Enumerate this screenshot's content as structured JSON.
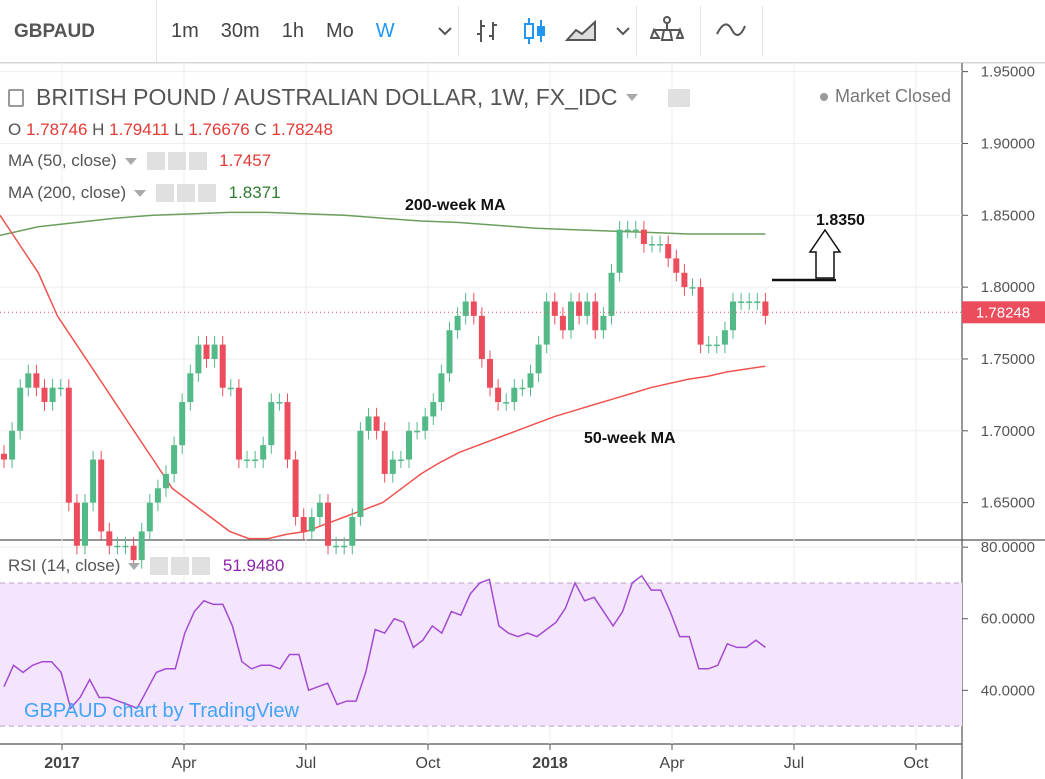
{
  "toolbar": {
    "symbol": "GBPAUD",
    "intervals": [
      "1m",
      "30m",
      "1h",
      "Mo",
      "W"
    ],
    "active_interval": "W",
    "icons": [
      "chevron-down-icon",
      "bar-chart-icon",
      "candles-icon",
      "area-chart-icon",
      "chevron-down-icon",
      "indicators-icon",
      "compare-icon"
    ]
  },
  "legend": {
    "title": "BRITISH POUND / AUSTRALIAN DOLLAR, 1W, FX_IDC",
    "ohlc": {
      "o_label": "O",
      "o": "1.78746",
      "h_label": "H",
      "h": "1.79411",
      "l_label": "L",
      "l": "1.76676",
      "c_label": "C",
      "c": "1.78248"
    },
    "ma50": {
      "label": "MA (50, close)",
      "value": "1.7457"
    },
    "ma200": {
      "label": "MA (200, close)",
      "value": "1.8371"
    },
    "rsi": {
      "label": "RSI (14, close)",
      "value": "51.9480"
    },
    "status": "Market Closed",
    "watermark": "GBPAUD chart by TradingView"
  },
  "colors": {
    "up": "#53b987",
    "down": "#eb4d5c",
    "ma50": "#ef5350",
    "ma200": "#6b9e5b",
    "rsi": "#a44ad0",
    "rsi_band": "#f3e5fc",
    "accent": "#2196f3"
  },
  "chart_data": [
    {
      "type": "candlestick",
      "title": "BRITISH POUND / AUSTRALIAN DOLLAR, 1W, FX_IDC",
      "x_tick_labels": [
        "2017",
        "Apr",
        "Jul",
        "Oct",
        "2018",
        "Apr",
        "Jul",
        "Oct"
      ],
      "y_tick_labels": [
        "1.95000",
        "1.90000",
        "1.85000",
        "1.80000",
        "1.75000",
        "1.70000",
        "1.65000"
      ],
      "ylim": [
        1.624,
        1.956
      ],
      "last_price_label": "1.78248",
      "close_series": [
        1.68,
        1.7,
        1.73,
        1.74,
        1.73,
        1.72,
        1.73,
        1.73,
        1.65,
        1.62,
        1.65,
        1.68,
        1.63,
        1.62,
        1.62,
        1.62,
        1.61,
        1.63,
        1.65,
        1.66,
        1.67,
        1.69,
        1.72,
        1.74,
        1.76,
        1.75,
        1.76,
        1.73,
        1.73,
        1.68,
        1.68,
        1.68,
        1.69,
        1.72,
        1.72,
        1.68,
        1.64,
        1.63,
        1.64,
        1.65,
        1.62,
        1.62,
        1.62,
        1.64,
        1.7,
        1.71,
        1.7,
        1.67,
        1.68,
        1.68,
        1.7,
        1.7,
        1.71,
        1.72,
        1.74,
        1.77,
        1.78,
        1.79,
        1.78,
        1.75,
        1.73,
        1.72,
        1.72,
        1.73,
        1.73,
        1.74,
        1.76,
        1.79,
        1.78,
        1.77,
        1.79,
        1.78,
        1.79,
        1.77,
        1.78,
        1.81,
        1.84,
        1.84,
        1.84,
        1.83,
        1.83,
        1.83,
        1.82,
        1.81,
        1.8,
        1.8,
        1.76,
        1.76,
        1.76,
        1.77,
        1.79,
        1.79,
        1.79,
        1.79,
        1.78
      ],
      "ma50_series": [
        1.85,
        1.83,
        1.81,
        1.78,
        1.76,
        1.74,
        1.72,
        1.7,
        1.68,
        1.66,
        1.65,
        1.64,
        1.63,
        1.625,
        1.625,
        1.628,
        1.63,
        1.635,
        1.64,
        1.645,
        1.65,
        1.66,
        1.67,
        1.678,
        1.685,
        1.69,
        1.695,
        1.7,
        1.705,
        1.71,
        1.714,
        1.718,
        1.722,
        1.726,
        1.73,
        1.733,
        1.736,
        1.738,
        1.741,
        1.743,
        1.745
      ],
      "ma200_series": [
        1.836,
        1.842,
        1.845,
        1.848,
        1.85,
        1.851,
        1.852,
        1.852,
        1.851,
        1.85,
        1.848,
        1.846,
        1.845,
        1.843,
        1.841,
        1.84,
        1.839,
        1.838,
        1.837,
        1.837,
        1.837
      ],
      "annotations": [
        {
          "text": "200-week MA"
        },
        {
          "text": "50-week MA"
        },
        {
          "text": "1.8350"
        }
      ]
    },
    {
      "type": "line",
      "title": "RSI (14, close)",
      "y_tick_labels": [
        "80.0000",
        "60.0000",
        "40.0000"
      ],
      "ylim": [
        25,
        82
      ],
      "band": [
        30,
        70
      ],
      "values": [
        41,
        47,
        45,
        47,
        48,
        48,
        45,
        35,
        38,
        43,
        38,
        38,
        37,
        36,
        35,
        40,
        45,
        46,
        46,
        56,
        62,
        65,
        64,
        64,
        58,
        48,
        46,
        47,
        47,
        46,
        50,
        50,
        40,
        41,
        42,
        36,
        37,
        37,
        45,
        57,
        56,
        60,
        59,
        52,
        54,
        58,
        56,
        62,
        61,
        67,
        70,
        71,
        58,
        56,
        55,
        56,
        55,
        57,
        59,
        63,
        70,
        65,
        66,
        62,
        58,
        62,
        70,
        72,
        68,
        68,
        62,
        55,
        55,
        46,
        46,
        47,
        53,
        52,
        52,
        54,
        52
      ],
      "value_label": "51.9480"
    }
  ]
}
